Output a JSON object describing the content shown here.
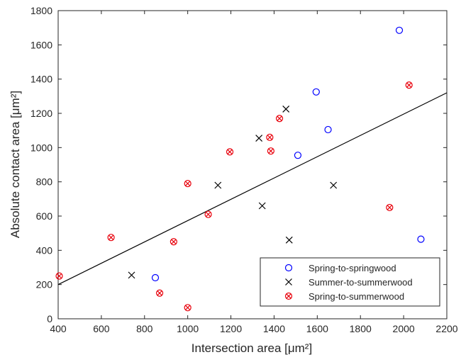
{
  "chart_data": {
    "type": "scatter",
    "xlabel": "Intersection area [μm²]",
    "ylabel": "Absolute contact area [μm²]",
    "xlim": [
      400,
      2200
    ],
    "ylim": [
      0,
      1800
    ],
    "x_ticks": [
      400,
      600,
      800,
      1000,
      1200,
      1400,
      1600,
      1800,
      2000,
      2200
    ],
    "y_ticks": [
      0,
      200,
      400,
      600,
      800,
      1000,
      1200,
      1400,
      1600,
      1800
    ],
    "grid": false,
    "legend_position": "bottom-right",
    "series": [
      {
        "name": "Spring-to-springwood",
        "marker": "circle",
        "color": "#0000ff",
        "points": [
          [
            850,
            240
          ],
          [
            1510,
            955
          ],
          [
            1595,
            1325
          ],
          [
            1650,
            1105
          ],
          [
            1980,
            1685
          ],
          [
            2080,
            465
          ]
        ]
      },
      {
        "name": "Summer-to-summerwood",
        "marker": "x",
        "color": "#000000",
        "points": [
          [
            740,
            255
          ],
          [
            1140,
            780
          ],
          [
            1330,
            1055
          ],
          [
            1345,
            660
          ],
          [
            1455,
            1225
          ],
          [
            1470,
            460
          ],
          [
            1675,
            780
          ]
        ]
      },
      {
        "name": "Spring-to-summerwood",
        "marker": "circle-x",
        "color": "#e8000b",
        "points": [
          [
            405,
            250
          ],
          [
            645,
            475
          ],
          [
            870,
            150
          ],
          [
            935,
            450
          ],
          [
            1000,
            65
          ],
          [
            1000,
            790
          ],
          [
            1095,
            610
          ],
          [
            1195,
            975
          ],
          [
            1380,
            1060
          ],
          [
            1385,
            980
          ],
          [
            1425,
            1170
          ],
          [
            1935,
            650
          ],
          [
            2025,
            1365
          ]
        ]
      }
    ],
    "fit_line": {
      "color": "#000000",
      "points": [
        [
          400,
          200
        ],
        [
          2200,
          1320
        ]
      ]
    }
  }
}
